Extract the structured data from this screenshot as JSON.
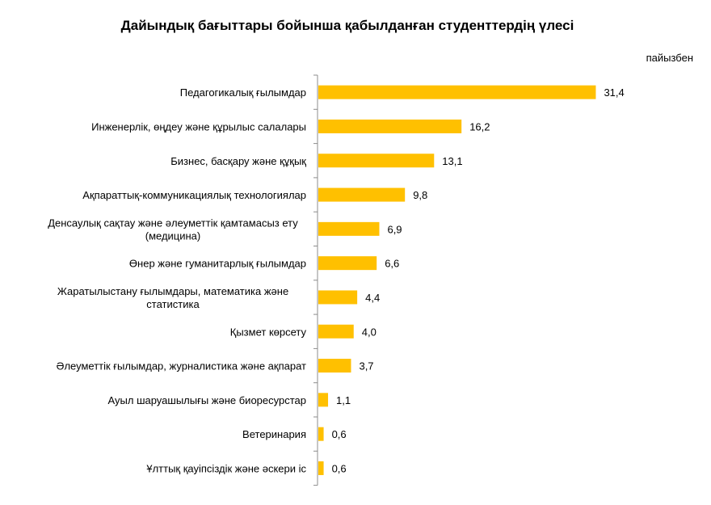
{
  "chart_data": {
    "type": "bar",
    "orientation": "horizontal",
    "title": "Дайындық бағыттары бойынша қабылданған студенттердің үлесі",
    "unit": "пайызбен",
    "bar_color": "#FFC000",
    "xlim": [
      0,
      32
    ],
    "grid": false,
    "categories": [
      [
        "Педагогикалық ғылымдар"
      ],
      [
        "Инженерлік, өңдеу және құрылыс салалары"
      ],
      [
        "Бизнес, басқару және құқық"
      ],
      [
        "Ақпараттық-коммуникациялық технологиялар"
      ],
      [
        "Денсаулық сақтау және әлеуметтік қамтамасыз ету",
        "(медицина)"
      ],
      [
        "Өнер және гуманитарлық ғылымдар"
      ],
      [
        "Жаратылыстану ғылымдары, математика және",
        "статистика"
      ],
      [
        "Қызмет көрсету"
      ],
      [
        "Әлеуметтік ғылымдар, журналистика және ақпарат"
      ],
      [
        "Ауыл шаруашылығы және биоресурстар"
      ],
      [
        "Ветеринария"
      ],
      [
        "Ұлттық қауіпсіздік  және әскери іс"
      ]
    ],
    "values": [
      31.4,
      16.2,
      13.1,
      9.8,
      6.9,
      6.6,
      4.4,
      4.0,
      3.7,
      1.1,
      0.6,
      0.6
    ],
    "value_labels": [
      "31,4",
      "16,2",
      "13,1",
      "9,8",
      "6,9",
      "6,6",
      "4,4",
      "4,0",
      "3,7",
      "1,1",
      "0,6",
      "0,6"
    ]
  }
}
